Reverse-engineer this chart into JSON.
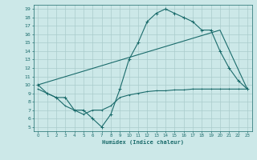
{
  "xlabel": "Humidex (Indice chaleur)",
  "bg_color": "#cce8e8",
  "grid_color": "#aacccc",
  "line_color": "#1a6b6b",
  "xlim": [
    -0.5,
    23.5
  ],
  "ylim": [
    4.5,
    19.5
  ],
  "xticks": [
    0,
    1,
    2,
    3,
    4,
    5,
    6,
    7,
    8,
    9,
    10,
    11,
    12,
    13,
    14,
    15,
    16,
    17,
    18,
    19,
    20,
    21,
    22,
    23
  ],
  "yticks": [
    5,
    6,
    7,
    8,
    9,
    10,
    11,
    12,
    13,
    14,
    15,
    16,
    17,
    18,
    19
  ],
  "curve1_x": [
    0,
    1,
    2,
    3,
    4,
    5,
    6,
    7,
    8,
    9,
    10,
    11,
    12,
    13,
    14,
    15,
    16,
    17,
    18,
    19,
    20,
    21,
    22,
    23
  ],
  "curve1_y": [
    10.0,
    9.0,
    8.5,
    8.5,
    7.0,
    7.0,
    6.0,
    5.0,
    6.5,
    9.5,
    13.0,
    15.0,
    17.5,
    18.5,
    19.0,
    18.5,
    18.0,
    17.5,
    16.5,
    16.5,
    14.0,
    12.0,
    10.5,
    9.5
  ],
  "curve2_x": [
    0,
    20,
    23
  ],
  "curve2_y": [
    10.0,
    16.5,
    9.5
  ],
  "curve3_x": [
    0,
    1,
    2,
    3,
    4,
    5,
    6,
    7,
    8,
    9,
    10,
    11,
    12,
    13,
    14,
    15,
    16,
    17,
    18,
    19,
    20,
    21,
    22,
    23
  ],
  "curve3_y": [
    9.5,
    9.0,
    8.5,
    7.5,
    7.0,
    6.5,
    7.0,
    7.0,
    7.5,
    8.5,
    8.8,
    9.0,
    9.2,
    9.3,
    9.3,
    9.4,
    9.4,
    9.5,
    9.5,
    9.5,
    9.5,
    9.5,
    9.5,
    9.5
  ]
}
